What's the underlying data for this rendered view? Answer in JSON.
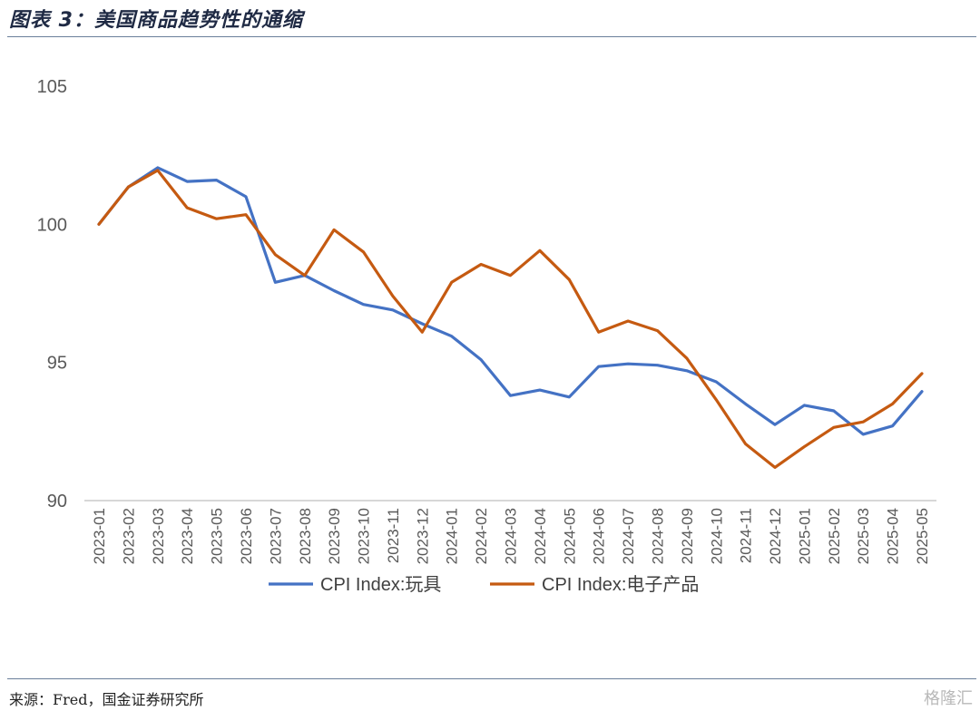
{
  "header": {
    "title": "图表 3：美国商品趋势性的通缩"
  },
  "footer": {
    "source": "来源：Fred，国金证券研究所",
    "watermark": "格隆汇"
  },
  "colors": {
    "toys": "#4472C4",
    "electronics": "#C55A11",
    "axis": "#bfbfbf",
    "text": "#595959"
  },
  "chart_data": {
    "type": "line",
    "title": "",
    "xlabel": "",
    "ylabel": "",
    "ylim": [
      90,
      105
    ],
    "yticks": [
      "90",
      "95",
      "100",
      "105"
    ],
    "grid": false,
    "legend": "bottom",
    "x": [
      "2023-01",
      "2023-02",
      "2023-03",
      "2023-04",
      "2023-05",
      "2023-06",
      "2023-07",
      "2023-08",
      "2023-09",
      "2023-10",
      "2023-11",
      "2023-12",
      "2024-01",
      "2024-02",
      "2024-03",
      "2024-04",
      "2024-05",
      "2024-06",
      "2024-07",
      "2024-08",
      "2024-09",
      "2024-10",
      "2024-11",
      "2024-12",
      "2025-01",
      "2025-02",
      "2025-03",
      "2025-04",
      "2025-05"
    ],
    "series": [
      {
        "name": "CPI Index:玩具",
        "values": [
          100.0,
          101.35,
          102.05,
          101.55,
          101.6,
          101.0,
          97.9,
          98.15,
          97.6,
          97.1,
          96.9,
          96.4,
          95.95,
          95.1,
          93.8,
          94.0,
          93.75,
          94.85,
          94.95,
          94.9,
          94.7,
          94.3,
          93.5,
          92.75,
          93.45,
          93.25,
          92.4,
          92.7,
          93.95
        ]
      },
      {
        "name": "CPI Index:电子产品",
        "values": [
          100.0,
          101.35,
          101.95,
          100.6,
          100.2,
          100.35,
          98.9,
          98.15,
          99.8,
          99.0,
          97.4,
          96.1,
          97.9,
          98.55,
          98.15,
          99.05,
          98.0,
          96.1,
          96.5,
          96.15,
          95.15,
          93.65,
          92.05,
          91.2,
          91.95,
          92.65,
          92.85,
          93.5,
          94.6
        ]
      }
    ]
  }
}
